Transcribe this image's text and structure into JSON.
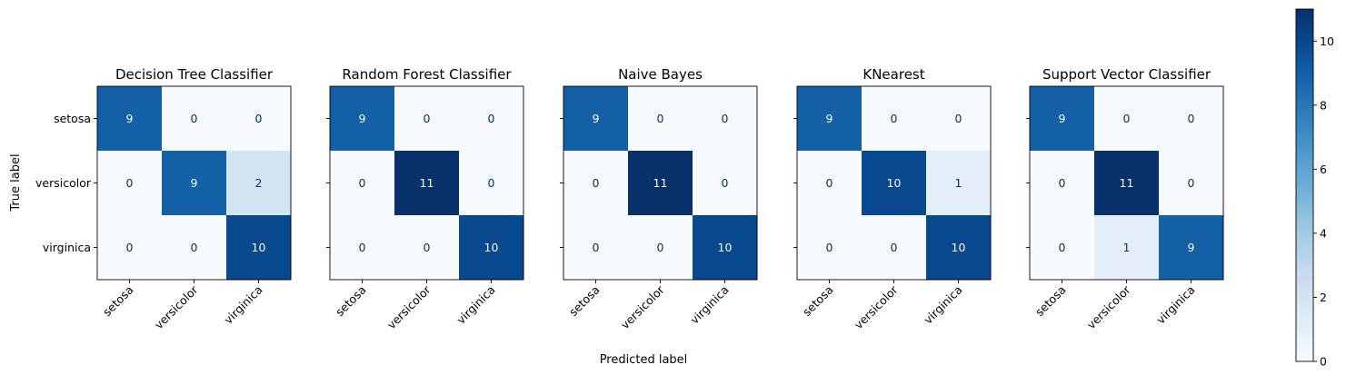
{
  "chart_data": {
    "type": "heatmap",
    "xlabel": "Predicted label",
    "ylabel": "True label",
    "class_labels": [
      "setosa",
      "versicolor",
      "virginica"
    ],
    "colormap": "Blues",
    "colorbar": {
      "min": 0,
      "max": 11,
      "ticks": [
        "0",
        "2",
        "4",
        "6",
        "8",
        "10"
      ]
    },
    "grid": false,
    "panels": [
      {
        "title": "Decision Tree Classifier",
        "matrix": [
          [
            9,
            0,
            0
          ],
          [
            0,
            9,
            2
          ],
          [
            0,
            0,
            10
          ]
        ]
      },
      {
        "title": "Random Forest Classifier",
        "matrix": [
          [
            9,
            0,
            0
          ],
          [
            0,
            11,
            0
          ],
          [
            0,
            0,
            10
          ]
        ]
      },
      {
        "title": "Naive Bayes",
        "matrix": [
          [
            9,
            0,
            0
          ],
          [
            0,
            11,
            0
          ],
          [
            0,
            0,
            10
          ]
        ]
      },
      {
        "title": "KNearest",
        "matrix": [
          [
            9,
            0,
            0
          ],
          [
            0,
            10,
            1
          ],
          [
            0,
            0,
            10
          ]
        ]
      },
      {
        "title": "Support Vector Classifier",
        "matrix": [
          [
            9,
            0,
            0
          ],
          [
            0,
            11,
            0
          ],
          [
            0,
            1,
            9
          ]
        ]
      }
    ]
  }
}
